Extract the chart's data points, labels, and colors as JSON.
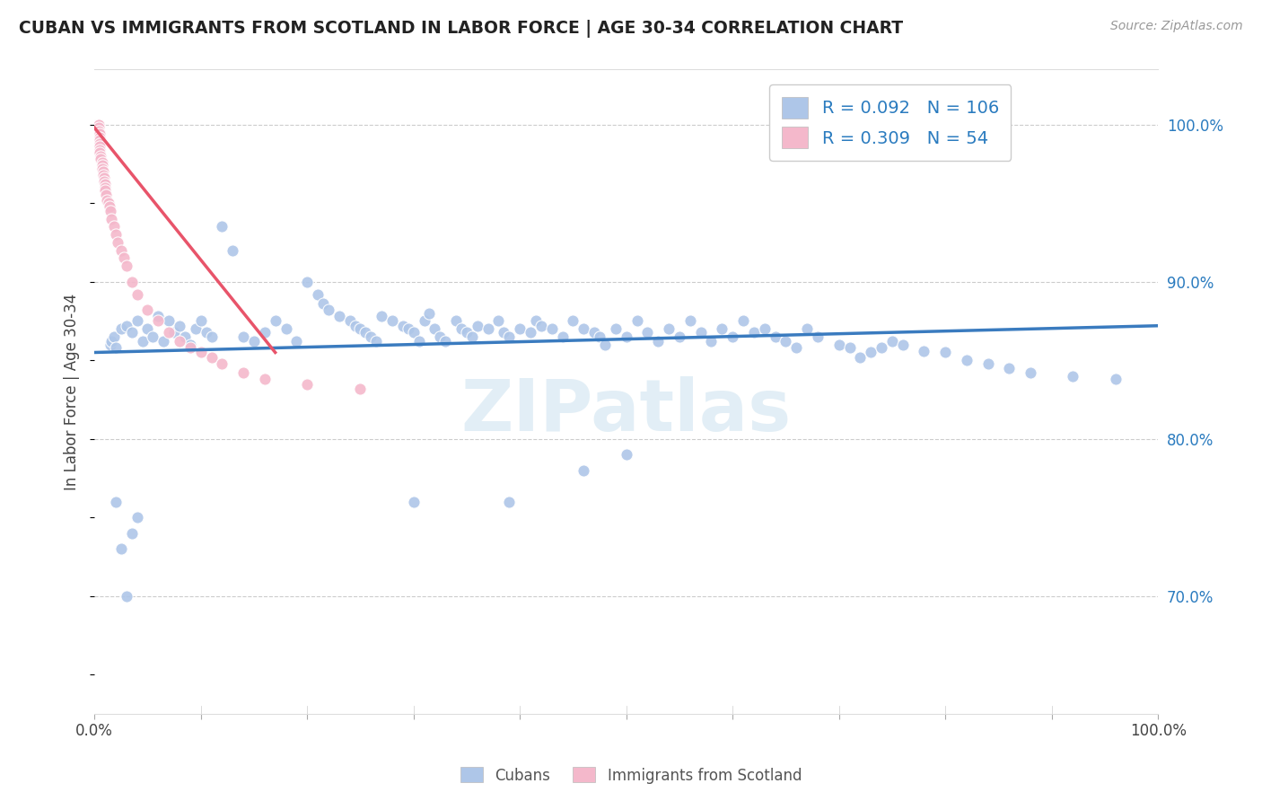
{
  "title": "CUBAN VS IMMIGRANTS FROM SCOTLAND IN LABOR FORCE | AGE 30-34 CORRELATION CHART",
  "source": "Source: ZipAtlas.com",
  "ylabel": "In Labor Force | Age 30-34",
  "xlim": [
    0.0,
    1.0
  ],
  "ylim": [
    0.625,
    1.035
  ],
  "xticks": [
    0.0,
    0.1,
    0.2,
    0.3,
    0.4,
    0.5,
    0.6,
    0.7,
    0.8,
    0.9,
    1.0
  ],
  "xtick_labels": [
    "0.0%",
    "",
    "",
    "",
    "",
    "",
    "",
    "",
    "",
    "",
    "100.0%"
  ],
  "ytick_right_labels": [
    "70.0%",
    "80.0%",
    "90.0%",
    "100.0%"
  ],
  "ytick_right_vals": [
    0.7,
    0.8,
    0.9,
    1.0
  ],
  "legend_r1": "0.092",
  "legend_n1": "106",
  "legend_r2": "0.309",
  "legend_n2": "54",
  "blue_color": "#aec6e8",
  "pink_color": "#f4b8cb",
  "line_blue_color": "#3a7bbf",
  "line_pink_color": "#e8546a",
  "watermark": "ZIPatlas",
  "background_color": "#ffffff",
  "grid_color": "#cccccc",
  "cubans_x": [
    0.015,
    0.016,
    0.018,
    0.02,
    0.025,
    0.03,
    0.035,
    0.04,
    0.045,
    0.05,
    0.055,
    0.06,
    0.065,
    0.07,
    0.075,
    0.08,
    0.085,
    0.09,
    0.095,
    0.1,
    0.105,
    0.11,
    0.12,
    0.13,
    0.14,
    0.15,
    0.16,
    0.17,
    0.18,
    0.19,
    0.2,
    0.21,
    0.215,
    0.22,
    0.23,
    0.24,
    0.245,
    0.25,
    0.255,
    0.26,
    0.265,
    0.27,
    0.28,
    0.29,
    0.295,
    0.3,
    0.305,
    0.31,
    0.315,
    0.32,
    0.325,
    0.33,
    0.34,
    0.345,
    0.35,
    0.355,
    0.36,
    0.37,
    0.38,
    0.385,
    0.39,
    0.4,
    0.41,
    0.415,
    0.42,
    0.43,
    0.44,
    0.45,
    0.46,
    0.47,
    0.475,
    0.48,
    0.49,
    0.5,
    0.51,
    0.52,
    0.53,
    0.54,
    0.55,
    0.56,
    0.57,
    0.58,
    0.59,
    0.6,
    0.61,
    0.62,
    0.63,
    0.64,
    0.65,
    0.66,
    0.67,
    0.68,
    0.7,
    0.71,
    0.72,
    0.73,
    0.74,
    0.75,
    0.76,
    0.78,
    0.8,
    0.82,
    0.84,
    0.86,
    0.88,
    0.92,
    0.96
  ],
  "cubans_y": [
    0.86,
    0.862,
    0.865,
    0.858,
    0.87,
    0.872,
    0.868,
    0.875,
    0.862,
    0.87,
    0.865,
    0.878,
    0.862,
    0.875,
    0.868,
    0.872,
    0.865,
    0.86,
    0.87,
    0.875,
    0.868,
    0.865,
    0.935,
    0.92,
    0.865,
    0.862,
    0.868,
    0.875,
    0.87,
    0.862,
    0.9,
    0.892,
    0.886,
    0.882,
    0.878,
    0.875,
    0.872,
    0.87,
    0.868,
    0.865,
    0.862,
    0.878,
    0.875,
    0.872,
    0.87,
    0.868,
    0.862,
    0.875,
    0.88,
    0.87,
    0.865,
    0.862,
    0.875,
    0.87,
    0.868,
    0.865,
    0.872,
    0.87,
    0.875,
    0.868,
    0.865,
    0.87,
    0.868,
    0.875,
    0.872,
    0.87,
    0.865,
    0.875,
    0.87,
    0.868,
    0.865,
    0.86,
    0.87,
    0.865,
    0.875,
    0.868,
    0.862,
    0.87,
    0.865,
    0.875,
    0.868,
    0.862,
    0.87,
    0.865,
    0.875,
    0.868,
    0.87,
    0.865,
    0.862,
    0.858,
    0.87,
    0.865,
    0.86,
    0.858,
    0.852,
    0.855,
    0.858,
    0.862,
    0.86,
    0.856,
    0.855,
    0.85,
    0.848,
    0.845,
    0.842,
    0.84,
    0.838
  ],
  "cubans_y_outliers_x": [
    0.02,
    0.025,
    0.03,
    0.035,
    0.04,
    0.3,
    0.39,
    0.46,
    0.5
  ],
  "cubans_y_outliers_y": [
    0.76,
    0.73,
    0.7,
    0.74,
    0.75,
    0.76,
    0.76,
    0.78,
    0.79
  ],
  "scotland_x": [
    0.003,
    0.003,
    0.003,
    0.003,
    0.003,
    0.004,
    0.004,
    0.004,
    0.004,
    0.005,
    0.005,
    0.005,
    0.005,
    0.005,
    0.005,
    0.005,
    0.006,
    0.006,
    0.007,
    0.007,
    0.007,
    0.008,
    0.008,
    0.009,
    0.009,
    0.01,
    0.01,
    0.01,
    0.011,
    0.012,
    0.013,
    0.014,
    0.015,
    0.016,
    0.018,
    0.02,
    0.022,
    0.025,
    0.028,
    0.03,
    0.035,
    0.04,
    0.05,
    0.06,
    0.07,
    0.08,
    0.09,
    0.1,
    0.11,
    0.12,
    0.14,
    0.16,
    0.2,
    0.25
  ],
  "scotland_y": [
    1.0,
    1.0,
    1.0,
    1.0,
    1.0,
    1.0,
    1.0,
    0.998,
    0.996,
    0.994,
    0.992,
    0.99,
    0.988,
    0.986,
    0.984,
    0.982,
    0.98,
    0.978,
    0.976,
    0.974,
    0.972,
    0.97,
    0.968,
    0.966,
    0.964,
    0.962,
    0.96,
    0.958,
    0.955,
    0.952,
    0.95,
    0.948,
    0.945,
    0.94,
    0.935,
    0.93,
    0.925,
    0.92,
    0.915,
    0.91,
    0.9,
    0.892,
    0.882,
    0.875,
    0.868,
    0.862,
    0.858,
    0.855,
    0.852,
    0.848,
    0.842,
    0.838,
    0.835,
    0.832
  ],
  "blue_trendline_x": [
    0.0,
    1.0
  ],
  "blue_trendline_y": [
    0.855,
    0.872
  ],
  "pink_trendline_x": [
    0.0,
    0.17
  ],
  "pink_trendline_y": [
    0.998,
    0.855
  ]
}
